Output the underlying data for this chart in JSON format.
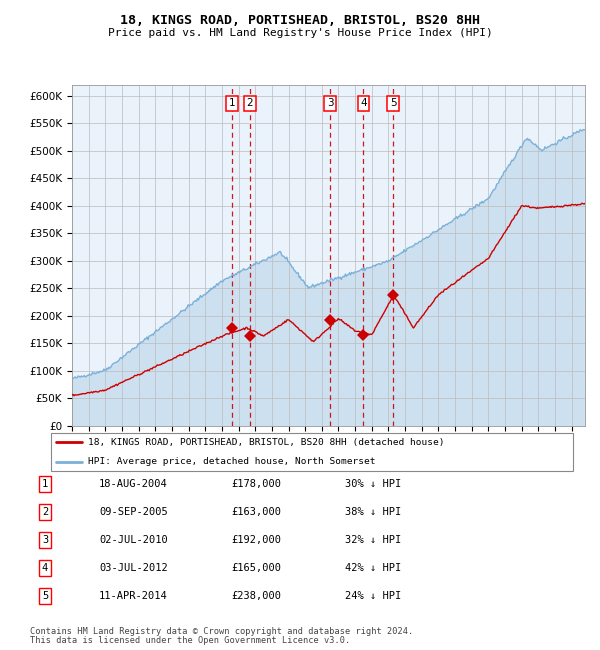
{
  "title": "18, KINGS ROAD, PORTISHEAD, BRISTOL, BS20 8HH",
  "subtitle": "Price paid vs. HM Land Registry's House Price Index (HPI)",
  "legend_line1": "18, KINGS ROAD, PORTISHEAD, BRISTOL, BS20 8HH (detached house)",
  "legend_line2": "HPI: Average price, detached house, North Somerset",
  "footer1": "Contains HM Land Registry data © Crown copyright and database right 2024.",
  "footer2": "This data is licensed under the Open Government Licence v3.0.",
  "transactions": [
    {
      "num": 1,
      "date": "18-AUG-2004",
      "price": 178000,
      "pct": "30%",
      "year": 2004.63
    },
    {
      "num": 2,
      "date": "09-SEP-2005",
      "price": 163000,
      "pct": "38%",
      "year": 2005.69
    },
    {
      "num": 3,
      "date": "02-JUL-2010",
      "price": 192000,
      "pct": "32%",
      "year": 2010.5
    },
    {
      "num": 4,
      "date": "03-JUL-2012",
      "price": 165000,
      "pct": "42%",
      "year": 2012.5
    },
    {
      "num": 5,
      "date": "11-APR-2014",
      "price": 238000,
      "pct": "24%",
      "year": 2014.28
    }
  ],
  "hpi_color": "#7ab0d8",
  "hpi_fill": "#cce0f0",
  "price_color": "#cc0000",
  "vline_color": "#cc0000",
  "grid_color": "#bbbbbb",
  "plot_bg": "#eaf2fb",
  "ylim": [
    0,
    620000
  ],
  "xlim_start": 1995.0,
  "xlim_end": 2025.8
}
